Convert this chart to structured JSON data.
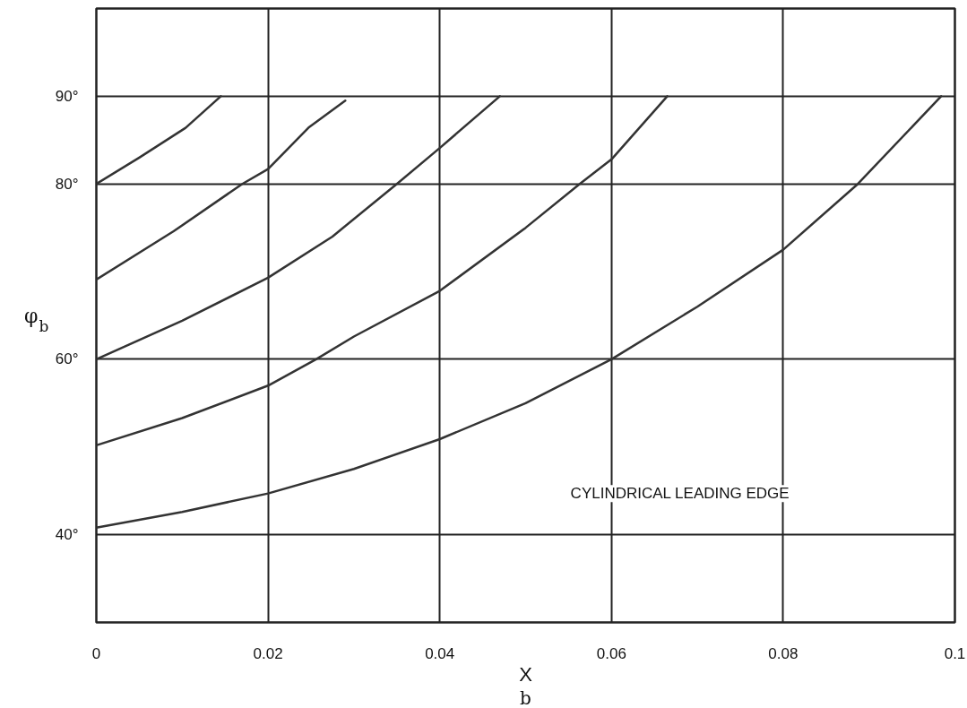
{
  "chart_data": {
    "type": "line",
    "xlabel": "X$_{b}$",
    "ylabel": "φ$_{b}$",
    "annotations": [
      "CYLINDRICAL LEADING EDGE"
    ],
    "xlim": [
      0,
      0.1
    ],
    "ylim": [
      30,
      100
    ],
    "xticks": [
      0,
      0.02,
      0.04,
      0.06,
      0.08,
      0.1
    ],
    "yticks": [
      {
        "value": 40,
        "label": "40°"
      },
      {
        "value": 60,
        "label": "60°"
      },
      {
        "value": 80,
        "label": "80°"
      },
      {
        "value": 90,
        "label": "90°"
      }
    ],
    "grid": true,
    "marker": "none",
    "line_style": "solid",
    "series": [
      {
        "color": "#333333",
        "x": [
          0,
          0.005,
          0.0104,
          0.0145
        ],
        "values": [
          80,
          83,
          86.4,
          90
        ]
      },
      {
        "color": "#333333",
        "x": [
          0,
          0.009,
          0.017,
          0.02,
          0.0247,
          0.029
        ],
        "values": [
          69.1,
          74.6,
          80,
          81.7,
          86.4,
          89.5
        ]
      },
      {
        "color": "#333333",
        "x": [
          0,
          0.01,
          0.02,
          0.0275,
          0.035,
          0.04,
          0.047
        ],
        "values": [
          60,
          64.4,
          69.3,
          74,
          80,
          84.1,
          90
        ]
      },
      {
        "color": "#333333",
        "x": [
          0,
          0.01,
          0.02,
          0.0256,
          0.03,
          0.04,
          0.05,
          0.0563,
          0.06,
          0.0665
        ],
        "values": [
          50.2,
          53.3,
          57,
          60,
          62.6,
          67.8,
          75,
          80,
          82.8,
          90
        ]
      },
      {
        "color": "#333333",
        "x": [
          0,
          0.01,
          0.02,
          0.03,
          0.04,
          0.05,
          0.06,
          0.07,
          0.08,
          0.0887,
          0.0984
        ],
        "values": [
          40.8,
          42.6,
          44.7,
          47.5,
          50.9,
          55,
          60,
          66,
          72.5,
          80,
          90
        ]
      }
    ]
  }
}
